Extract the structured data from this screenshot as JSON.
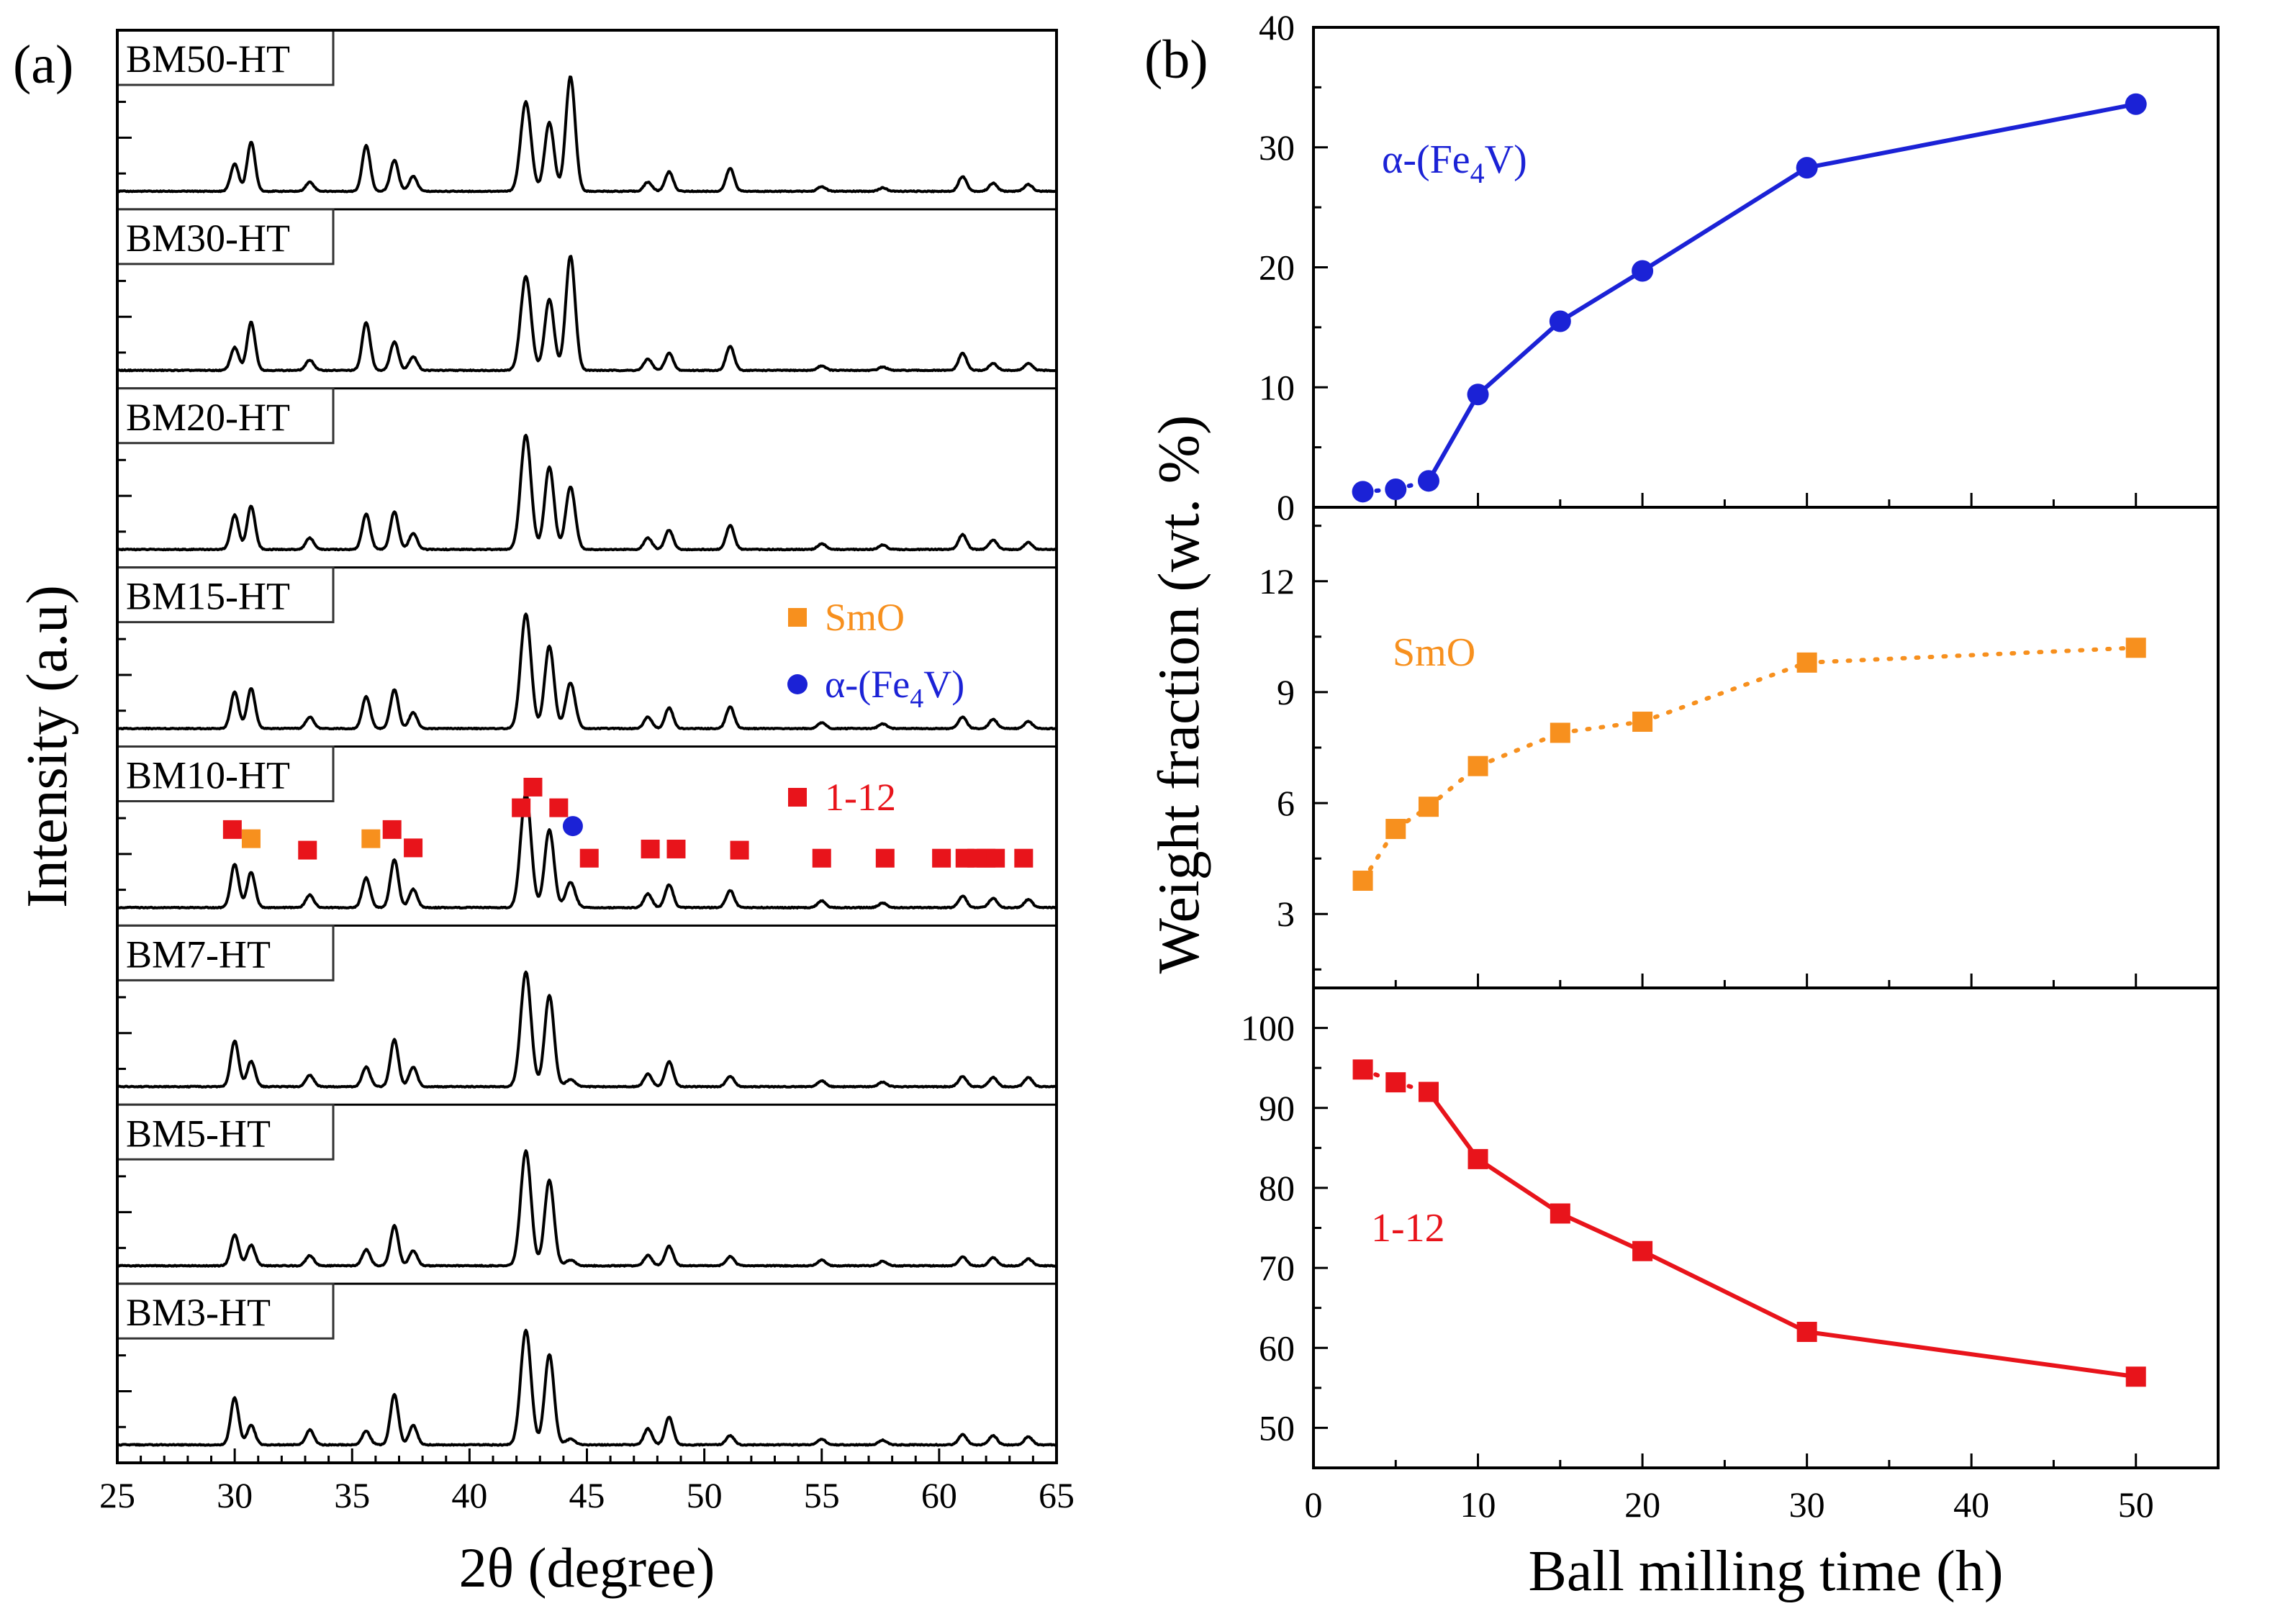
{
  "panel_labels": {
    "a": "(a)",
    "b": "(b)"
  },
  "colors": {
    "phase_1_12": "#e8141b",
    "smo": "#f7901e",
    "alpha_fe4v": "#1b22d6",
    "pattern": "#000000"
  },
  "chart_data": [
    {
      "type": "line",
      "panel": "(a)",
      "title": "",
      "xlabel": "2θ (degree)",
      "ylabel": "Intensity (a.u)",
      "xlim": [
        25,
        65
      ],
      "xticks": [
        25,
        30,
        35,
        40,
        45,
        50,
        55,
        60,
        65
      ],
      "sample_order_top_to_bottom": [
        "BM50-HT",
        "BM30-HT",
        "BM20-HT",
        "BM15-HT",
        "BM10-HT",
        "BM7-HT",
        "BM5-HT",
        "BM3-HT"
      ],
      "series": [
        {
          "name": "BM50-HT",
          "peaks": [
            [
              30.0,
              0.24
            ],
            [
              30.7,
              0.43
            ],
            [
              33.2,
              0.08
            ],
            [
              35.6,
              0.4
            ],
            [
              36.8,
              0.27
            ],
            [
              37.6,
              0.13
            ],
            [
              42.4,
              0.78
            ],
            [
              43.4,
              0.6
            ],
            [
              44.3,
              1.0
            ],
            [
              47.6,
              0.08
            ],
            [
              48.5,
              0.17
            ],
            [
              51.1,
              0.2
            ],
            [
              55.0,
              0.04
            ],
            [
              57.6,
              0.03
            ],
            [
              61.0,
              0.13
            ],
            [
              62.3,
              0.07
            ],
            [
              63.8,
              0.06
            ]
          ]
        },
        {
          "name": "BM30-HT",
          "peaks": [
            [
              30.0,
              0.2
            ],
            [
              30.7,
              0.42
            ],
            [
              33.2,
              0.09
            ],
            [
              35.6,
              0.42
            ],
            [
              36.8,
              0.25
            ],
            [
              37.6,
              0.12
            ],
            [
              42.4,
              0.82
            ],
            [
              43.4,
              0.62
            ],
            [
              44.3,
              1.0
            ],
            [
              47.6,
              0.1
            ],
            [
              48.5,
              0.15
            ],
            [
              51.1,
              0.21
            ],
            [
              55.0,
              0.04
            ],
            [
              57.6,
              0.03
            ],
            [
              61.0,
              0.15
            ],
            [
              62.3,
              0.06
            ],
            [
              63.8,
              0.06
            ]
          ]
        },
        {
          "name": "BM20-HT",
          "peaks": [
            [
              30.0,
              0.3
            ],
            [
              30.7,
              0.38
            ],
            [
              33.2,
              0.1
            ],
            [
              35.6,
              0.31
            ],
            [
              36.8,
              0.33
            ],
            [
              37.6,
              0.14
            ],
            [
              42.4,
              1.0
            ],
            [
              43.4,
              0.72
            ],
            [
              44.3,
              0.55
            ],
            [
              47.6,
              0.1
            ],
            [
              48.5,
              0.17
            ],
            [
              51.1,
              0.21
            ],
            [
              55.0,
              0.05
            ],
            [
              57.6,
              0.04
            ],
            [
              61.0,
              0.13
            ],
            [
              62.3,
              0.08
            ],
            [
              63.8,
              0.06
            ]
          ]
        },
        {
          "name": "BM15-HT",
          "peaks": [
            [
              30.0,
              0.32
            ],
            [
              30.7,
              0.35
            ],
            [
              33.2,
              0.1
            ],
            [
              35.6,
              0.28
            ],
            [
              36.8,
              0.34
            ],
            [
              37.6,
              0.14
            ],
            [
              42.4,
              1.0
            ],
            [
              43.4,
              0.72
            ],
            [
              44.3,
              0.4
            ],
            [
              47.6,
              0.1
            ],
            [
              48.5,
              0.18
            ],
            [
              51.1,
              0.19
            ],
            [
              55.0,
              0.05
            ],
            [
              57.6,
              0.04
            ],
            [
              61.0,
              0.1
            ],
            [
              62.3,
              0.08
            ],
            [
              63.8,
              0.06
            ]
          ]
        },
        {
          "name": "BM10-HT",
          "peaks": [
            [
              30.0,
              0.38
            ],
            [
              30.7,
              0.31
            ],
            [
              33.2,
              0.11
            ],
            [
              35.6,
              0.26
            ],
            [
              36.8,
              0.42
            ],
            [
              37.6,
              0.16
            ],
            [
              42.4,
              1.0
            ],
            [
              43.4,
              0.68
            ],
            [
              44.3,
              0.22
            ],
            [
              47.6,
              0.12
            ],
            [
              48.5,
              0.2
            ],
            [
              51.1,
              0.15
            ],
            [
              55.0,
              0.06
            ],
            [
              57.6,
              0.04
            ],
            [
              61.0,
              0.1
            ],
            [
              62.3,
              0.08
            ],
            [
              63.8,
              0.07
            ]
          ]
        },
        {
          "name": "BM7-HT",
          "peaks": [
            [
              30.0,
              0.4
            ],
            [
              30.7,
              0.22
            ],
            [
              33.2,
              0.1
            ],
            [
              35.6,
              0.17
            ],
            [
              36.8,
              0.41
            ],
            [
              37.6,
              0.17
            ],
            [
              42.4,
              1.0
            ],
            [
              43.4,
              0.8
            ],
            [
              44.3,
              0.06
            ],
            [
              47.6,
              0.11
            ],
            [
              48.5,
              0.22
            ],
            [
              51.1,
              0.09
            ],
            [
              55.0,
              0.05
            ],
            [
              57.6,
              0.04
            ],
            [
              61.0,
              0.09
            ],
            [
              62.3,
              0.08
            ],
            [
              63.8,
              0.08
            ]
          ]
        },
        {
          "name": "BM5-HT",
          "peaks": [
            [
              30.0,
              0.27
            ],
            [
              30.7,
              0.18
            ],
            [
              33.2,
              0.09
            ],
            [
              35.6,
              0.14
            ],
            [
              36.8,
              0.35
            ],
            [
              37.6,
              0.13
            ],
            [
              42.4,
              1.0
            ],
            [
              43.4,
              0.75
            ],
            [
              44.3,
              0.05
            ],
            [
              47.6,
              0.09
            ],
            [
              48.5,
              0.17
            ],
            [
              51.1,
              0.08
            ],
            [
              55.0,
              0.05
            ],
            [
              57.6,
              0.04
            ],
            [
              61.0,
              0.08
            ],
            [
              62.3,
              0.07
            ],
            [
              63.8,
              0.06
            ]
          ]
        },
        {
          "name": "BM3-HT",
          "peaks": [
            [
              30.0,
              0.41
            ],
            [
              30.7,
              0.17
            ],
            [
              33.2,
              0.13
            ],
            [
              35.6,
              0.12
            ],
            [
              36.8,
              0.44
            ],
            [
              37.6,
              0.17
            ],
            [
              42.4,
              1.0
            ],
            [
              43.4,
              0.79
            ],
            [
              44.3,
              0.05
            ],
            [
              47.6,
              0.14
            ],
            [
              48.5,
              0.24
            ],
            [
              51.1,
              0.08
            ],
            [
              55.0,
              0.05
            ],
            [
              57.6,
              0.04
            ],
            [
              61.0,
              0.09
            ],
            [
              62.3,
              0.08
            ],
            [
              63.8,
              0.07
            ]
          ]
        }
      ],
      "phase_markers": {
        "panel": "BM10-HT",
        "1-12": [
          29.9,
          33.1,
          36.7,
          37.6,
          42.2,
          42.7,
          43.8,
          45.1,
          47.7,
          48.8,
          51.5,
          55.0,
          57.7,
          60.1,
          61.1,
          61.6,
          62.0,
          62.4,
          63.6
        ],
        "SmO": [
          30.7,
          35.8
        ],
        "α-(Fe4V)": [
          44.4
        ]
      },
      "legend": [
        {
          "label": "SmO",
          "marker": "square",
          "color": "#f7901e"
        },
        {
          "label": "α-(Fe4V)",
          "marker": "circle",
          "color": "#1b22d6"
        },
        {
          "label": "1-12",
          "marker": "square",
          "color": "#e8141b"
        }
      ]
    },
    {
      "type": "line",
      "panel": "(b)",
      "xlabel": "Ball milling time (h)",
      "ylabel": "Weight fraction (wt. %)",
      "xlim": [
        0,
        55
      ],
      "xticks": [
        0,
        10,
        20,
        30,
        40,
        50
      ],
      "x": [
        3,
        5,
        7,
        10,
        15,
        20,
        30,
        50
      ],
      "subplots": [
        {
          "name": "α-(Fe4V)",
          "label_text": "α-(Fe",
          "label_sub": "4",
          "label_tail": "V)",
          "color": "#1b22d6",
          "marker": "circle",
          "ylim": [
            0,
            40
          ],
          "yticks": [
            0,
            10,
            20,
            30,
            40
          ],
          "values": [
            1.3,
            1.5,
            2.2,
            9.4,
            15.5,
            19.7,
            28.3,
            33.6
          ],
          "dotted_segments": [
            0,
            1
          ]
        },
        {
          "name": "SmO",
          "label_text": "SmO",
          "color": "#f7901e",
          "marker": "square",
          "ylim": [
            1,
            14
          ],
          "yticks": [
            3,
            6,
            9,
            12
          ],
          "values": [
            3.9,
            5.3,
            5.9,
            7.0,
            7.9,
            8.2,
            9.8,
            10.2
          ],
          "dotted_segments": [
            0,
            1,
            2,
            3,
            4,
            5,
            6
          ]
        },
        {
          "name": "1-12",
          "label_text": "1-12",
          "color": "#e8141b",
          "marker": "square",
          "ylim": [
            45,
            105
          ],
          "yticks": [
            50,
            60,
            70,
            80,
            90,
            100
          ],
          "values": [
            94.8,
            93.2,
            92.0,
            83.6,
            76.8,
            72.1,
            62.0,
            56.4
          ],
          "dotted_segments": [
            0,
            1
          ]
        }
      ]
    }
  ]
}
